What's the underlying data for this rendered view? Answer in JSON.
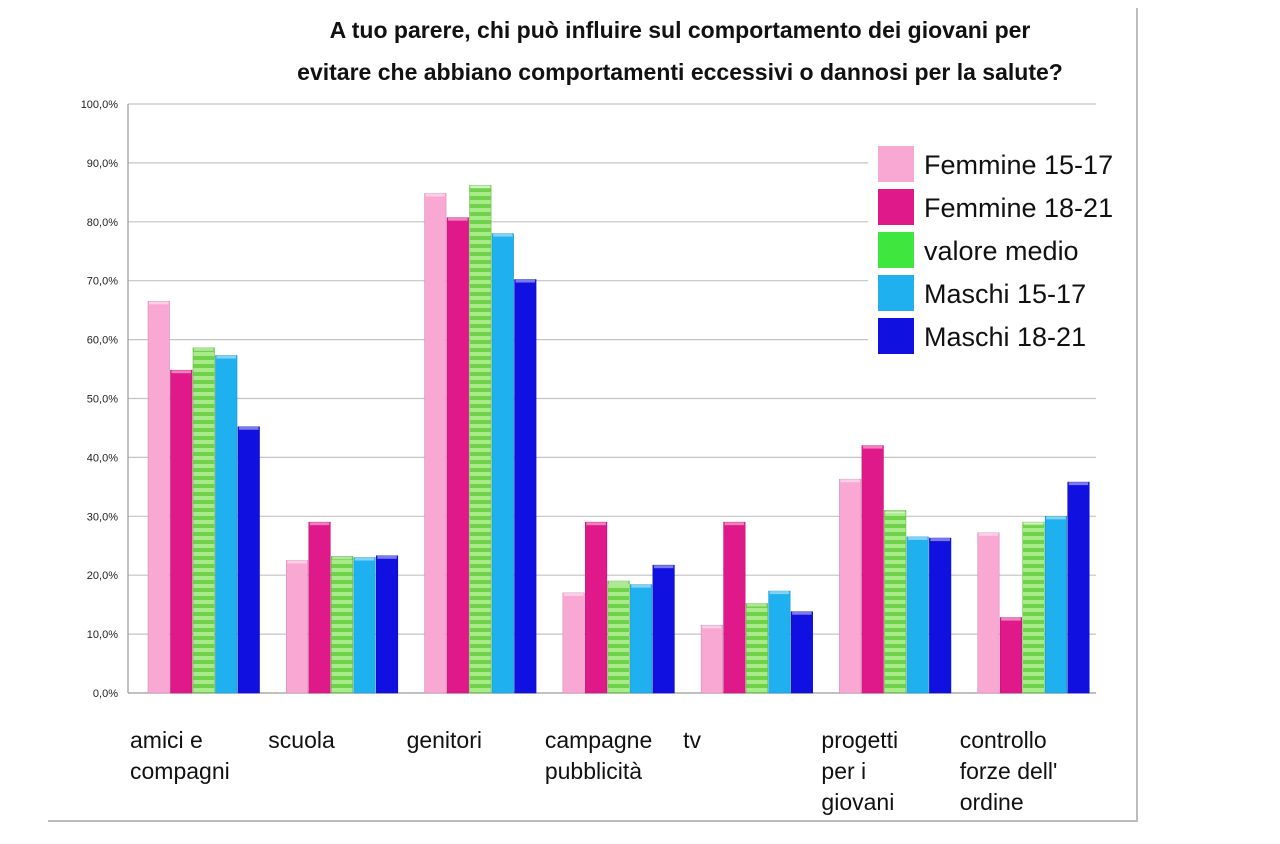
{
  "chart_data": {
    "type": "bar",
    "title_lines": [
      "A tuo parere, chi può influire sul comportamento dei giovani per",
      "evitare che abbiano comportamenti eccessivi o dannosi per la salute?"
    ],
    "categories": [
      [
        "amici e",
        "compagni"
      ],
      [
        "scuola"
      ],
      [
        "genitori"
      ],
      [
        "campagne",
        "pubblicità"
      ],
      [
        "tv"
      ],
      [
        "progetti",
        "per i",
        "giovani"
      ],
      [
        "controllo",
        "forze dell'",
        "ordine"
      ]
    ],
    "series": [
      {
        "name": "Femmine 15-17",
        "color": "#f9a8d4",
        "values": [
          66.5,
          22.5,
          84.8,
          17.0,
          11.5,
          36.3,
          27.2
        ]
      },
      {
        "name": "Femmine 18-21",
        "color": "#e0198a",
        "values": [
          54.8,
          29.0,
          80.7,
          29.0,
          29.0,
          42.0,
          12.8
        ]
      },
      {
        "name": "valore medio",
        "color": "#7ed957",
        "values": [
          58.6,
          23.2,
          86.2,
          19.0,
          15.2,
          31.0,
          29.0
        ]
      },
      {
        "name": "Maschi 15-17",
        "color": "#1fb0f0",
        "values": [
          57.3,
          23.0,
          78.0,
          18.4,
          17.3,
          26.5,
          30.0
        ]
      },
      {
        "name": "Maschi 18-21",
        "color": "#1010e0",
        "values": [
          45.2,
          23.3,
          70.2,
          21.7,
          13.8,
          26.3,
          35.8
        ]
      }
    ],
    "y_ticks": [
      "0,0%",
      "10,0%",
      "20,0%",
      "30,0%",
      "40,0%",
      "50,0%",
      "60,0%",
      "70,0%",
      "80,0%",
      "90,0%",
      "100,0%"
    ],
    "ylim": [
      0,
      100
    ],
    "grid": true,
    "legend_position": "top-right"
  }
}
